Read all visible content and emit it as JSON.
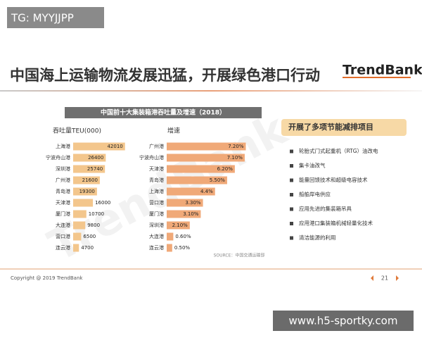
{
  "overlay": {
    "tag": "TG: MYYJJPP",
    "site": "www.h5-sportky.com"
  },
  "header": {
    "title": "中国海上运输物流发展迅猛，开展绿色港口行动",
    "logo": "TrendBank",
    "watermark": "TrendBank"
  },
  "figure": {
    "title": "中国前十大集装箱港吞吐量及增速（2018）",
    "source": "SOURCE：中国交通运输部"
  },
  "chart_data": [
    {
      "type": "bar",
      "orientation": "horizontal",
      "title": "吞吐量TEU(000)",
      "categories": [
        "上海港",
        "宁波舟山港",
        "深圳港",
        "广州港",
        "青岛港",
        "天津港",
        "厦门港",
        "大连港",
        "营口港",
        "连云港"
      ],
      "values": [
        42010,
        26400,
        25740,
        21600,
        19300,
        16000,
        10700,
        9800,
        6500,
        4700
      ],
      "color": "#f3c68c",
      "xlim": [
        0,
        45000
      ]
    },
    {
      "type": "bar",
      "orientation": "horizontal",
      "title": "增速",
      "categories": [
        "广州港",
        "宁波舟山港",
        "天津港",
        "青岛港",
        "上海港",
        "营口港",
        "厦门港",
        "深圳港",
        "大连港",
        "连云港"
      ],
      "values": [
        7.2,
        7.1,
        6.2,
        5.5,
        4.4,
        3.3,
        3.1,
        2.1,
        0.6,
        0.5
      ],
      "value_labels": [
        "7.20%",
        "7.10%",
        "6.20%",
        "5.50%",
        "4.4%",
        "3.30%",
        "3.10%",
        "2.10%",
        "0.60%",
        "0.50%"
      ],
      "color": "#f0a978",
      "xlim": [
        0,
        8
      ]
    }
  ],
  "panel": {
    "title": "开展了多项节能减排项目",
    "items": [
      "轮胎式门式起重机（RTG）油改电",
      "集卡油改气",
      "能量回馈技术和超级电容技术",
      "船舶岸电供应",
      "应用先进的集装箱吊具",
      "应用港口集装箱机械轻量化技术",
      "清洁能源的利用"
    ]
  },
  "footer": {
    "copyright": "Copyright @ 2019 TrendBank",
    "page": "21"
  }
}
